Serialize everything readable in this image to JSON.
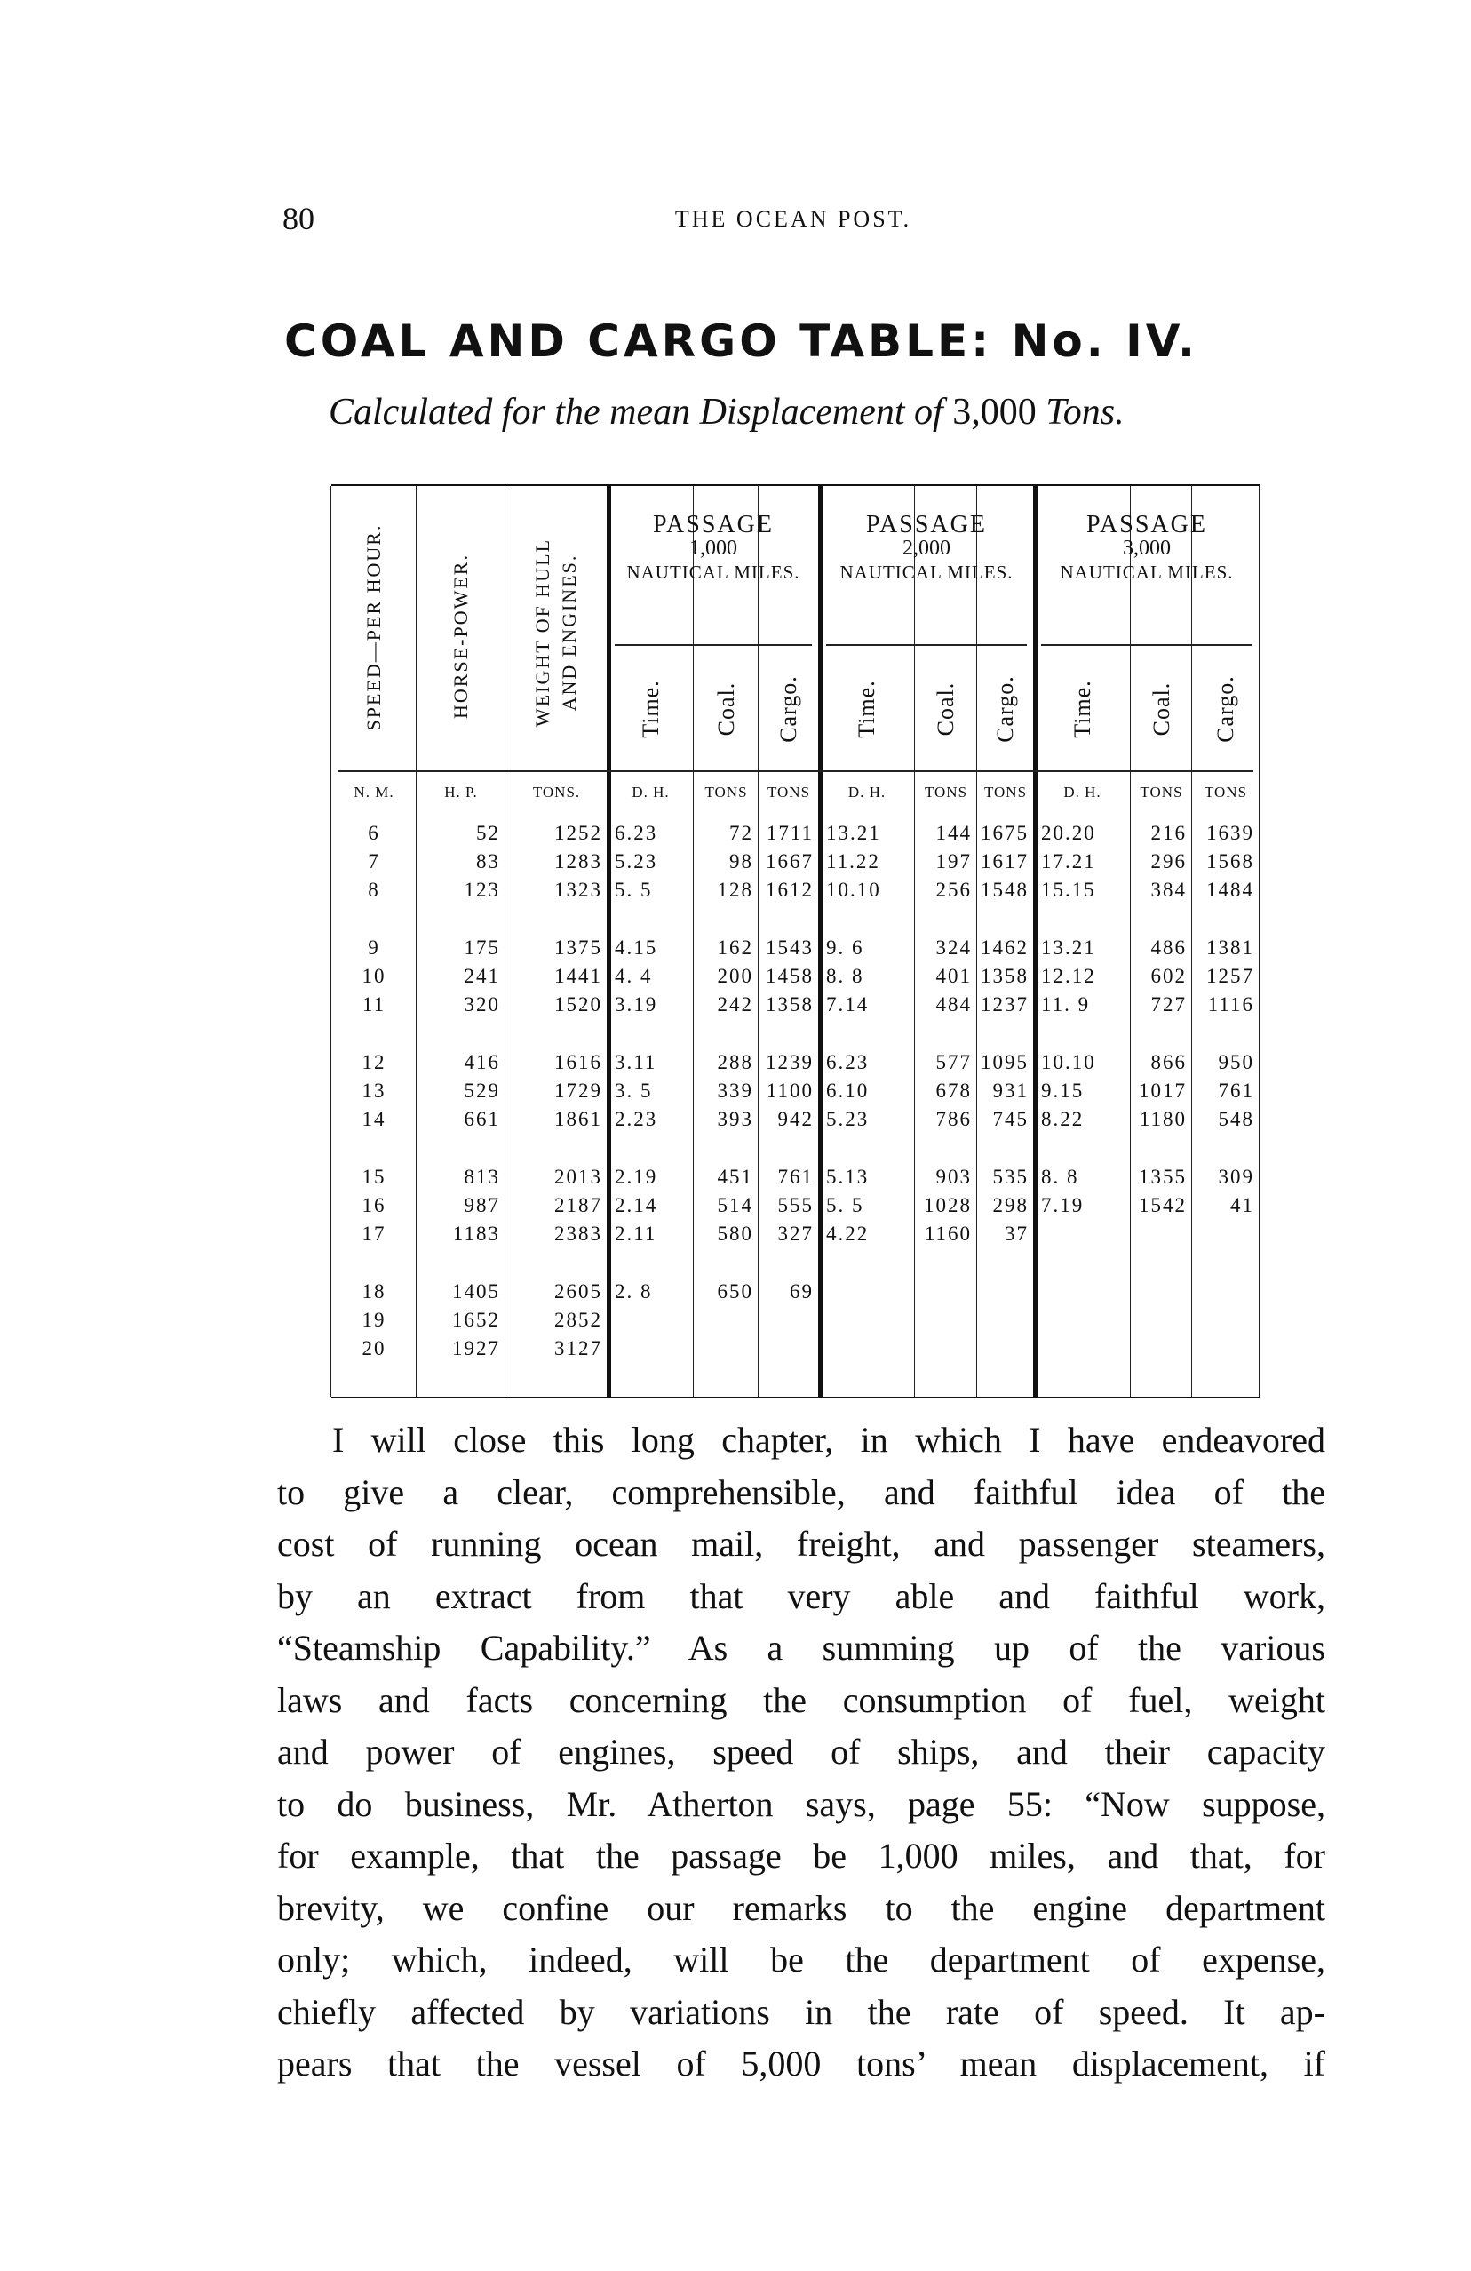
{
  "header": {
    "page_number": "80",
    "running_head": "THE OCEAN POST."
  },
  "title": "COAL AND CARGO TABLE: No. IV.",
  "subtitle": {
    "text": "Calculated for the mean Displacement of",
    "number": "3,000",
    "unit": "Tons."
  },
  "table": {
    "col_headers": {
      "speed": "SPEED—PER HOUR.",
      "horse_power": "HORSE-POWER.",
      "weight_line1": "WEIGHT OF HULL",
      "weight_line2": "AND ENGINES."
    },
    "passages": [
      {
        "label": "PASSAGE",
        "distance": "1,000",
        "unit": "NAUTICAL MILES."
      },
      {
        "label": "PASSAGE",
        "distance": "2,000",
        "unit": "NAUTICAL MILES."
      },
      {
        "label": "PASSAGE",
        "distance": "3,000",
        "unit": "NAUTICAL MILES."
      }
    ],
    "sub_headers": [
      "Time.",
      "Coal.",
      "Cargo."
    ],
    "units": [
      "N. M.",
      "H. P.",
      "TONS.",
      "D. H.",
      "TONS",
      "TONS",
      "D. H.",
      "TONS",
      "TONS",
      "D. H.",
      "TONS",
      "TONS"
    ],
    "rows": [
      [
        "6",
        "52",
        "1252",
        "6.23",
        "72",
        "1711",
        "13.21",
        "144",
        "1675",
        "20.20",
        "216",
        "1639"
      ],
      [
        "7",
        "83",
        "1283",
        "5.23",
        "98",
        "1667",
        "11.22",
        "197",
        "1617",
        "17.21",
        "296",
        "1568"
      ],
      [
        "8",
        "123",
        "1323",
        "5. 5",
        "128",
        "1612",
        "10.10",
        "256",
        "1548",
        "15.15",
        "384",
        "1484"
      ],
      [
        "9",
        "175",
        "1375",
        "4.15",
        "162",
        "1543",
        "9. 6",
        "324",
        "1462",
        "13.21",
        "486",
        "1381"
      ],
      [
        "10",
        "241",
        "1441",
        "4. 4",
        "200",
        "1458",
        "8. 8",
        "401",
        "1358",
        "12.12",
        "602",
        "1257"
      ],
      [
        "11",
        "320",
        "1520",
        "3.19",
        "242",
        "1358",
        "7.14",
        "484",
        "1237",
        "11. 9",
        "727",
        "1116"
      ],
      [
        "12",
        "416",
        "1616",
        "3.11",
        "288",
        "1239",
        "6.23",
        "577",
        "1095",
        "10.10",
        "866",
        "950"
      ],
      [
        "13",
        "529",
        "1729",
        "3. 5",
        "339",
        "1100",
        "6.10",
        "678",
        "931",
        "9.15",
        "1017",
        "761"
      ],
      [
        "14",
        "661",
        "1861",
        "2.23",
        "393",
        "942",
        "5.23",
        "786",
        "745",
        "8.22",
        "1180",
        "548"
      ],
      [
        "15",
        "813",
        "2013",
        "2.19",
        "451",
        "761",
        "5.13",
        "903",
        "535",
        "8. 8",
        "1355",
        "309"
      ],
      [
        "16",
        "987",
        "2187",
        "2.14",
        "514",
        "555",
        "5. 5",
        "1028",
        "298",
        "7.19",
        "1542",
        "41"
      ],
      [
        "17",
        "1183",
        "2383",
        "2.11",
        "580",
        "327",
        "4.22",
        "1160",
        "37",
        "",
        "",
        ""
      ],
      [
        "18",
        "1405",
        "2605",
        "2. 8",
        "650",
        "69",
        "",
        "",
        "",
        "",
        "",
        ""
      ],
      [
        "19",
        "1652",
        "2852",
        "",
        "",
        "",
        "",
        "",
        "",
        "",
        "",
        ""
      ],
      [
        "20",
        "1927",
        "3127",
        "",
        "",
        "",
        "",
        "",
        "",
        "",
        "",
        ""
      ]
    ]
  },
  "body_lines": [
    "I will close this long chapter, in which I have endeavored",
    "to give a clear, comprehensible, and faithful idea of the",
    "cost of running ocean mail, freight, and passenger steamers,",
    "by an extract from that very able and faithful work,",
    "“Steamship Capability.” As a summing up of the various",
    "laws and facts concerning the consumption of fuel, weight",
    "and power of engines, speed of ships, and their capacity",
    "to do business, Mr. Atherton says, page 55: “Now suppose,",
    "for example, that the passage be 1,000 miles, and that, for",
    "brevity, we confine our remarks to the engine department",
    "only; which, indeed, will be the department of expense,",
    "chiefly affected by variations in the rate of speed. It ap-",
    "pears that the vessel of 5,000 tons’ mean displacement, if"
  ]
}
